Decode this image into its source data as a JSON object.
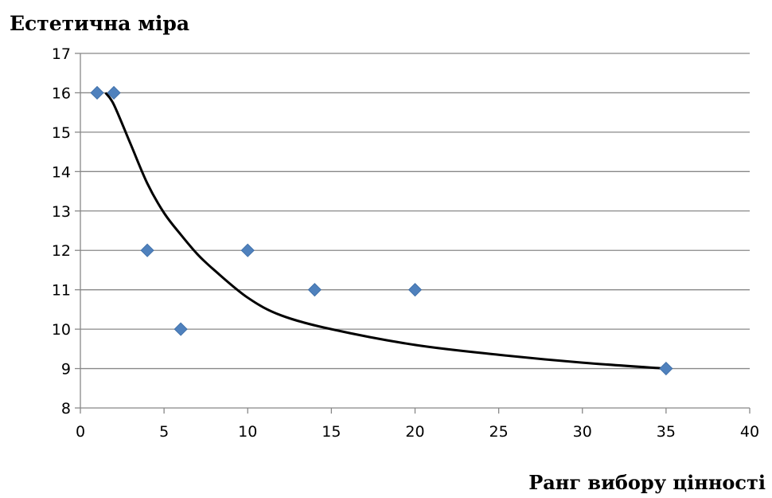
{
  "chart_data": {
    "type": "scatter",
    "ylabel": "Естетична міра",
    "xlabel": "Ранг вибору цінності",
    "xlim": [
      0,
      40
    ],
    "ylim": [
      8,
      17
    ],
    "xticks": [
      0,
      5,
      10,
      15,
      20,
      25,
      30,
      35,
      40
    ],
    "yticks": [
      8,
      9,
      10,
      11,
      12,
      13,
      14,
      15,
      16,
      17
    ],
    "grid": "horizontal",
    "marker_color": "#4F81BD",
    "trend_color": "#000000",
    "series": [
      {
        "points": [
          {
            "x": 1,
            "y": 16
          },
          {
            "x": 2,
            "y": 16
          },
          {
            "x": 4,
            "y": 12
          },
          {
            "x": 6,
            "y": 10
          },
          {
            "x": 10,
            "y": 12
          },
          {
            "x": 14,
            "y": 11
          },
          {
            "x": 20,
            "y": 11
          },
          {
            "x": 35,
            "y": 9
          }
        ]
      }
    ],
    "trendline": {
      "type": "power",
      "points": [
        {
          "x": 1.5,
          "y": 16.0
        },
        {
          "x": 2,
          "y": 15.7
        },
        {
          "x": 3,
          "y": 14.7
        },
        {
          "x": 4,
          "y": 13.7
        },
        {
          "x": 5,
          "y": 12.95
        },
        {
          "x": 6,
          "y": 12.4
        },
        {
          "x": 7,
          "y": 11.9
        },
        {
          "x": 8,
          "y": 11.5
        },
        {
          "x": 10,
          "y": 10.8
        },
        {
          "x": 12,
          "y": 10.35
        },
        {
          "x": 15,
          "y": 10.0
        },
        {
          "x": 20,
          "y": 9.6
        },
        {
          "x": 25,
          "y": 9.35
        },
        {
          "x": 30,
          "y": 9.15
        },
        {
          "x": 35,
          "y": 9.0
        }
      ]
    }
  }
}
